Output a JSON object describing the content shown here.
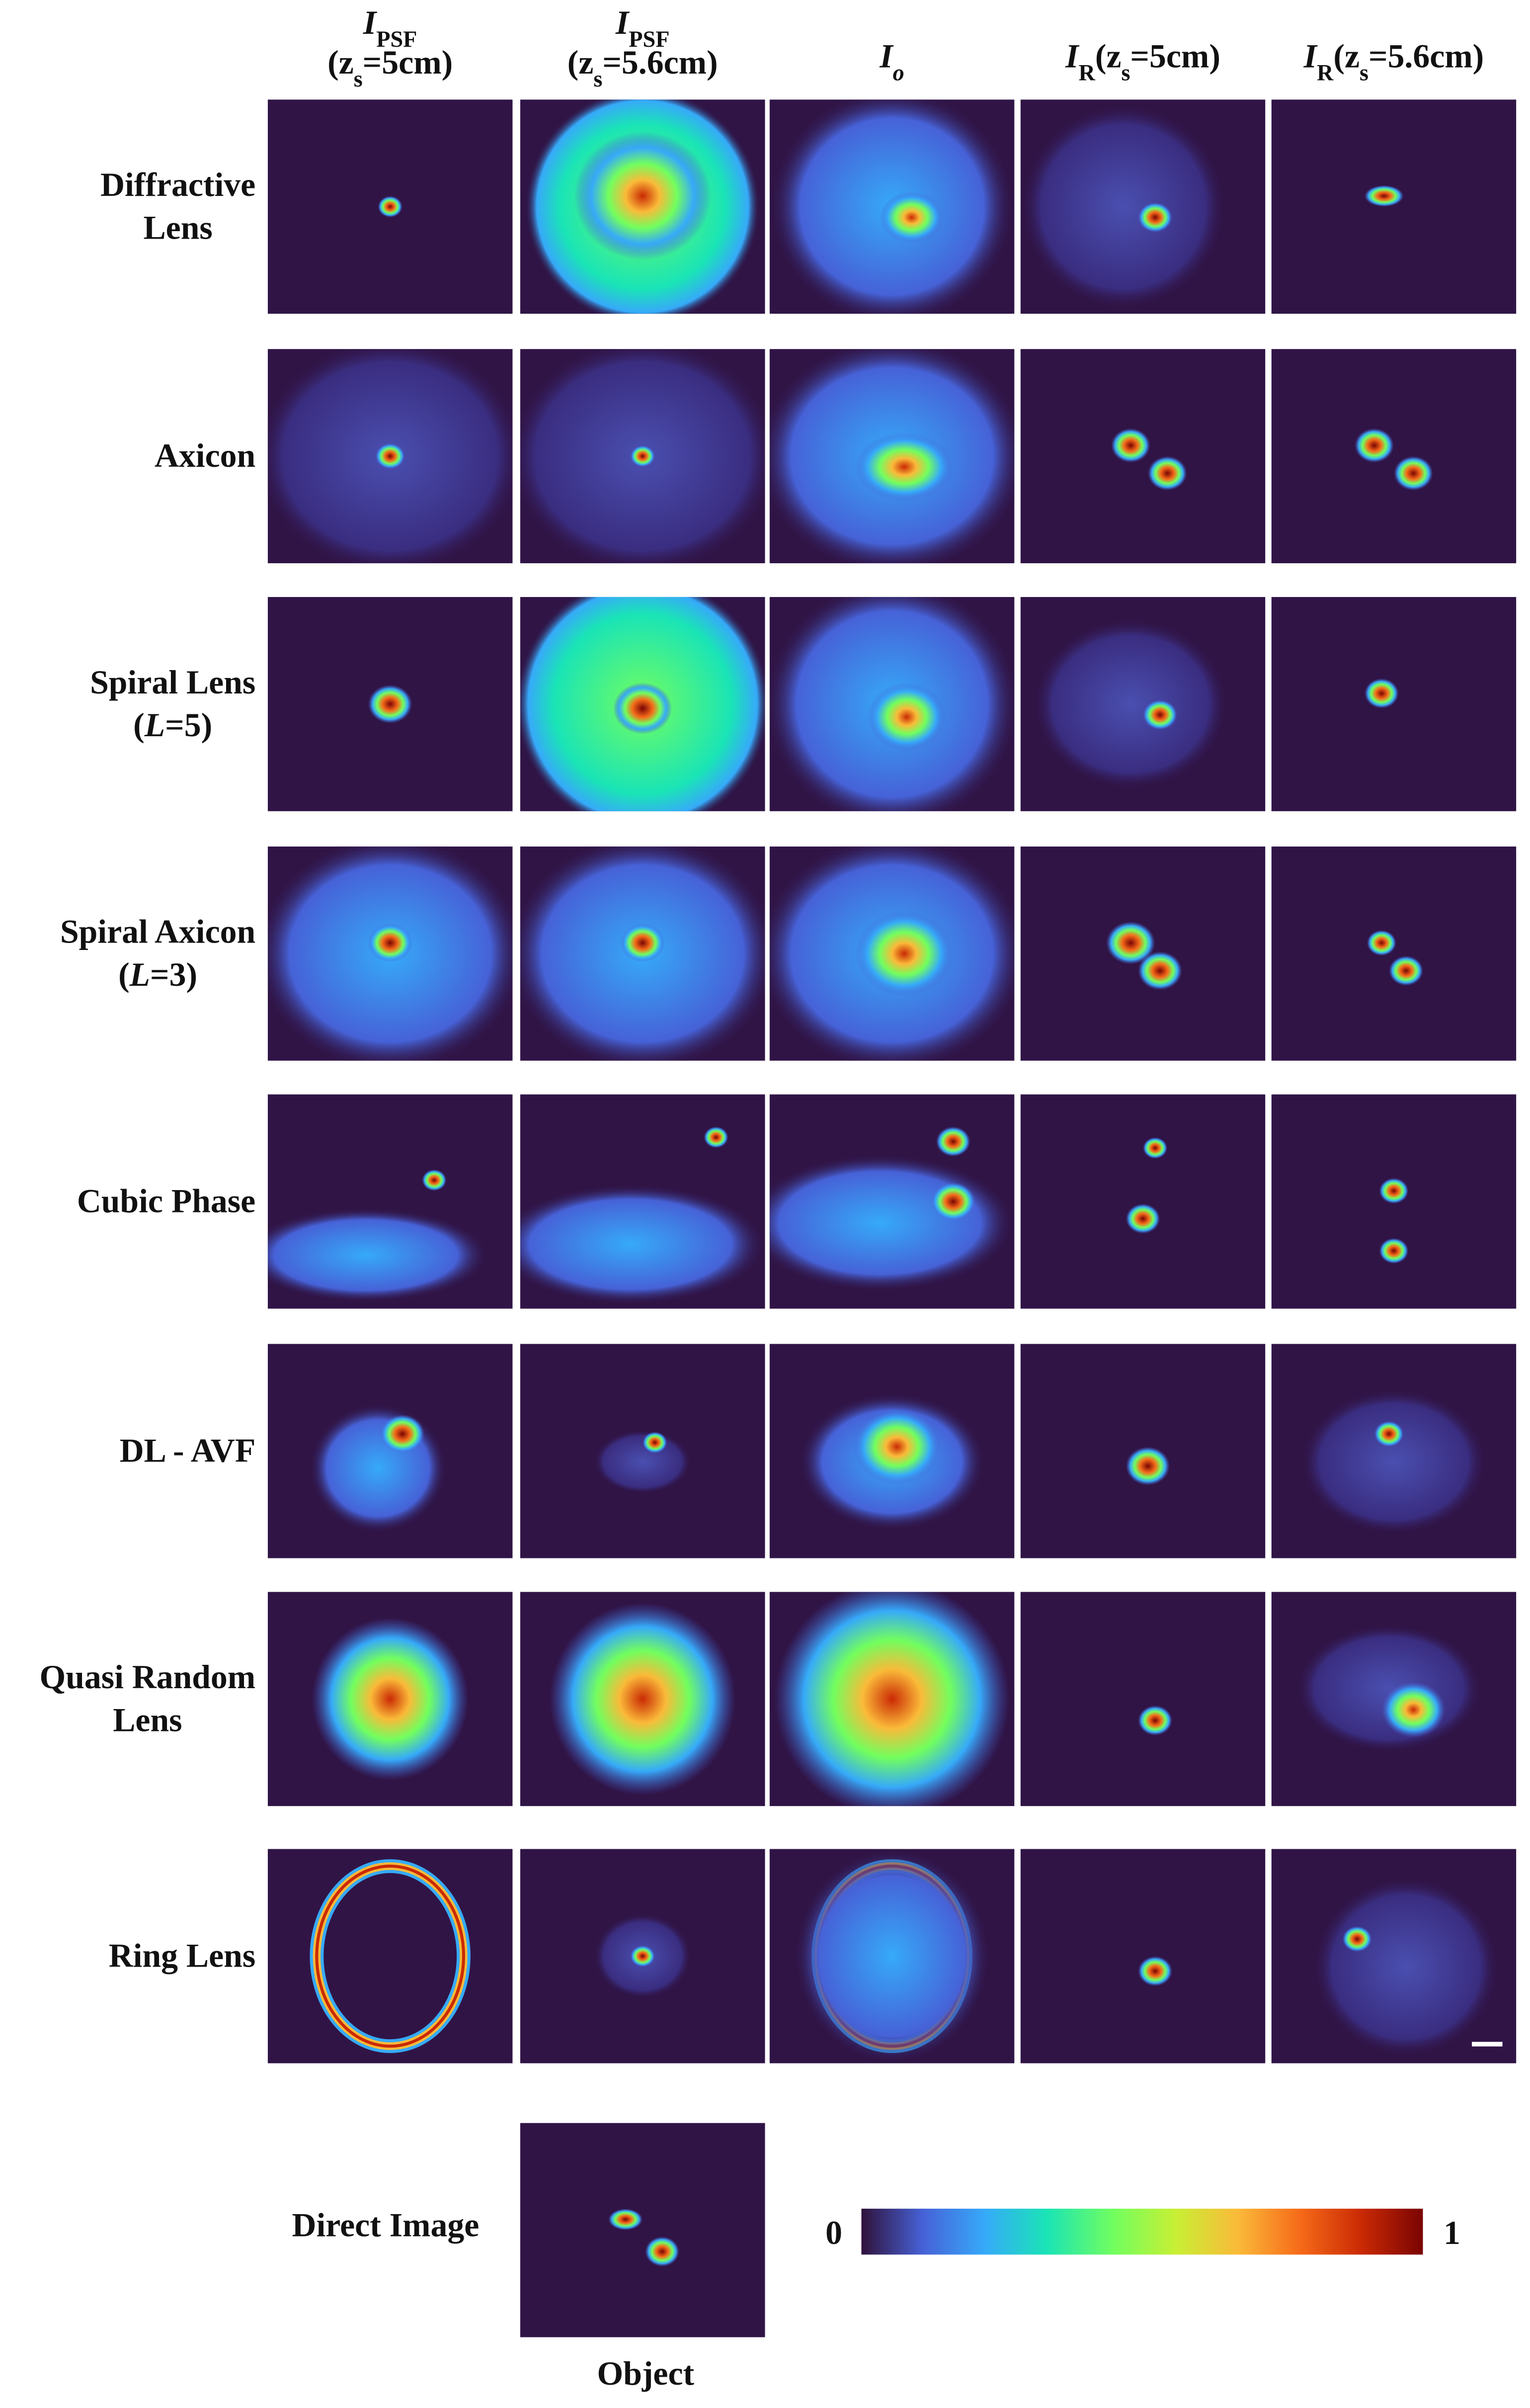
{
  "columns": [
    [
      [
        {
          "text": "I",
          "style": "italic"
        },
        {
          "text": "PSF",
          "style": "sub"
        }
      ],
      [
        {
          "text": "(z",
          "style": "plain"
        },
        {
          "text": "s",
          "style": "sub"
        },
        {
          "text": "=5cm)",
          "style": "plain"
        }
      ]
    ],
    [
      [
        {
          "text": "I",
          "style": "italic"
        },
        {
          "text": "PSF",
          "style": "sub"
        }
      ],
      [
        {
          "text": "(z",
          "style": "plain"
        },
        {
          "text": "s",
          "style": "sub"
        },
        {
          "text": "=5.6cm)",
          "style": "plain"
        }
      ]
    ],
    [
      [
        {
          "text": "I",
          "style": "italic"
        },
        {
          "text": "o",
          "style": "sub-italic"
        }
      ]
    ],
    [
      [
        {
          "text": "I",
          "style": "italic"
        },
        {
          "text": "R",
          "style": "sub"
        },
        {
          "text": "(z",
          "style": "plain"
        },
        {
          "text": "s",
          "style": "sub"
        },
        {
          "text": "=5cm)",
          "style": "plain"
        }
      ]
    ],
    [
      [
        {
          "text": "I",
          "style": "italic"
        },
        {
          "text": "R",
          "style": "sub"
        },
        {
          "text": "(z",
          "style": "plain"
        },
        {
          "text": "s",
          "style": "sub"
        },
        {
          "text": "=5.6cm)",
          "style": "plain"
        }
      ]
    ]
  ],
  "rows": [
    [
      [
        {
          "text": "Diffractive",
          "style": "plain"
        }
      ],
      [
        {
          "text": "Lens",
          "style": "plain"
        }
      ]
    ],
    [
      [
        {
          "text": "Axicon",
          "style": "plain"
        }
      ]
    ],
    [
      [
        {
          "text": "Spiral Lens",
          "style": "plain"
        }
      ],
      [
        {
          "text": "(",
          "style": "plain"
        },
        {
          "text": "L",
          "style": "italic"
        },
        {
          "text": "=5)",
          "style": "plain"
        }
      ]
    ],
    [
      [
        {
          "text": "Spiral Axicon",
          "style": "plain"
        }
      ],
      [
        {
          "text": "(",
          "style": "plain"
        },
        {
          "text": "L",
          "style": "italic"
        },
        {
          "text": "=3)",
          "style": "plain"
        }
      ]
    ],
    [
      [
        {
          "text": "Cubic Phase",
          "style": "plain"
        }
      ]
    ],
    [
      [
        {
          "text": "DL - AVF",
          "style": "plain"
        }
      ]
    ],
    [
      [
        {
          "text": "Quasi Random",
          "style": "plain"
        }
      ],
      [
        {
          "text": "Lens",
          "style": "plain"
        }
      ]
    ],
    [
      [
        {
          "text": "Ring Lens",
          "style": "plain"
        }
      ]
    ]
  ],
  "direct_image_label": "Direct Image",
  "object_label": "Object",
  "colorbar": {
    "min": 0,
    "max": 1
  }
}
